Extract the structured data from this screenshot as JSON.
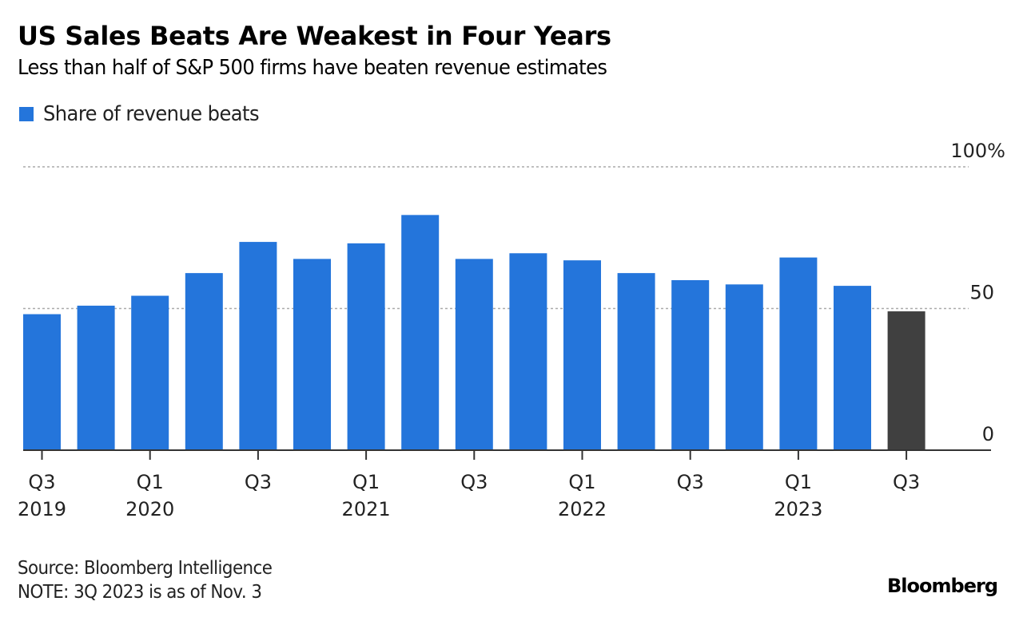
{
  "header": {
    "title": "US Sales Beats Are Weakest in Four Years",
    "subtitle": "Less than half of S&P 500 firms have beaten revenue estimates"
  },
  "legend": [
    {
      "label": "Share of revenue beats",
      "color": "#2475DB"
    }
  ],
  "footer": {
    "source": "Source: Bloomberg Intelligence",
    "note": "NOTE: 3Q 2023 is as of Nov. 3",
    "brand": "Bloomberg"
  },
  "colors": {
    "bar": "#2475DB",
    "highlight": "#404040",
    "grid": "#aaaaaa",
    "axis": "#333333",
    "text": "#222222"
  },
  "chart_data": {
    "type": "bar",
    "title": "US Sales Beats Are Weakest in Four Years",
    "subtitle": "Less than half of S&P 500 firms have beaten revenue estimates",
    "xlabel": "",
    "ylabel": "",
    "ylim": [
      0,
      100
    ],
    "yticks": [
      0,
      50,
      100
    ],
    "ytick_labels": [
      "0",
      "50",
      "100%"
    ],
    "grid": true,
    "legend_position": "top-left",
    "categories": [
      "Q3 2019",
      "Q4 2019",
      "Q1 2020",
      "Q2 2020",
      "Q3 2020",
      "Q4 2020",
      "Q1 2021",
      "Q2 2021",
      "Q3 2021",
      "Q4 2021",
      "Q1 2022",
      "Q2 2022",
      "Q3 2022",
      "Q4 2022",
      "Q1 2023",
      "Q2 2023",
      "Q3 2023"
    ],
    "series": [
      {
        "name": "Share of revenue beats",
        "values": [
          48,
          51,
          54.5,
          62.5,
          73.5,
          67.5,
          73,
          83,
          67.5,
          69.5,
          67,
          62.5,
          60,
          58.5,
          68,
          58,
          49
        ]
      }
    ],
    "highlight_index": 16,
    "xtick_labels": [
      {
        "index": 0,
        "line1": "Q3",
        "line2": "2019"
      },
      {
        "index": 2,
        "line1": "Q1",
        "line2": "2020"
      },
      {
        "index": 4,
        "line1": "Q3",
        "line2": ""
      },
      {
        "index": 6,
        "line1": "Q1",
        "line2": "2021"
      },
      {
        "index": 8,
        "line1": "Q3",
        "line2": ""
      },
      {
        "index": 10,
        "line1": "Q1",
        "line2": "2022"
      },
      {
        "index": 12,
        "line1": "Q3",
        "line2": ""
      },
      {
        "index": 14,
        "line1": "Q1",
        "line2": "2023"
      },
      {
        "index": 16,
        "line1": "Q3",
        "line2": ""
      }
    ]
  }
}
